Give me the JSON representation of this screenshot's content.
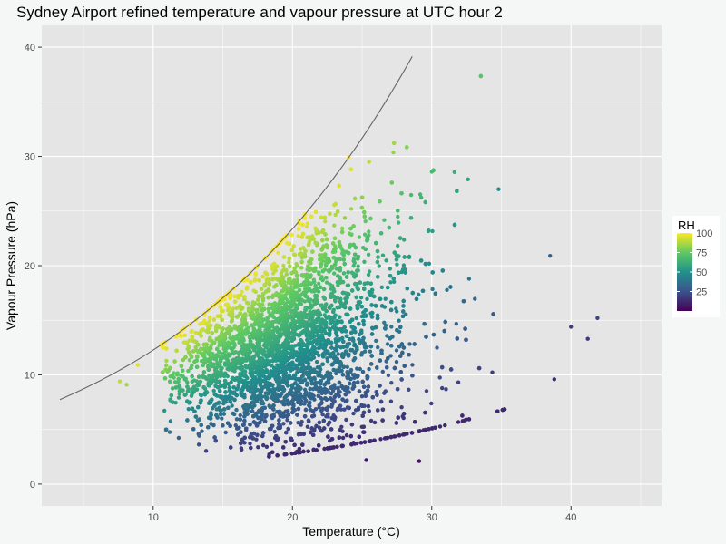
{
  "chart_data": {
    "type": "scatter",
    "title": "Sydney Airport refined temperature and vapour pressure at UTC hour  2",
    "xlabel": "Temperature (°C)",
    "ylabel": "Vapour Pressure (hPa)",
    "xlim": [
      2.0,
      46.5
    ],
    "ylim": [
      -2.0,
      42.0
    ],
    "xticks": [
      10,
      20,
      30,
      40
    ],
    "yticks": [
      0,
      10,
      20,
      30,
      40
    ],
    "grid": true,
    "legend": {
      "title": "RH",
      "placement": "right",
      "type": "colorbar",
      "ticks": [
        25,
        50,
        75,
        100
      ],
      "range": [
        0,
        100
      ],
      "colors": [
        "#440154",
        "#3b528b",
        "#21918c",
        "#5ec962",
        "#fde725"
      ]
    },
    "saturation_curve": {
      "description_from_plot": "saturation vapour pressure line",
      "x_range": [
        3.3,
        28.6
      ],
      "color": "#666666"
    },
    "highlighted_points": [
      {
        "x": 41.9,
        "y": 15.2,
        "rh": 20
      },
      {
        "x": 41.2,
        "y": 13.3,
        "rh": 17
      },
      {
        "x": 40.0,
        "y": 14.4,
        "rh": 19
      },
      {
        "x": 38.5,
        "y": 20.9,
        "rh": 30
      },
      {
        "x": 38.8,
        "y": 9.6,
        "rh": 14
      },
      {
        "x": 30.0,
        "y": 28.6,
        "rh": 67
      },
      {
        "x": 25.5,
        "y": 29.5,
        "rh": 90
      },
      {
        "x": 34.8,
        "y": 27.0,
        "rh": 49
      },
      {
        "x": 32.6,
        "y": 27.9,
        "rh": 57
      },
      {
        "x": 29.1,
        "y": 2.1,
        "rh": 5
      },
      {
        "x": 25.3,
        "y": 2.2,
        "rh": 6
      },
      {
        "x": 7.6,
        "y": 9.4,
        "rh": 90
      },
      {
        "x": 8.1,
        "y": 9.1,
        "rh": 85
      },
      {
        "x": 8.9,
        "y": 10.9,
        "rh": 95
      }
    ]
  }
}
